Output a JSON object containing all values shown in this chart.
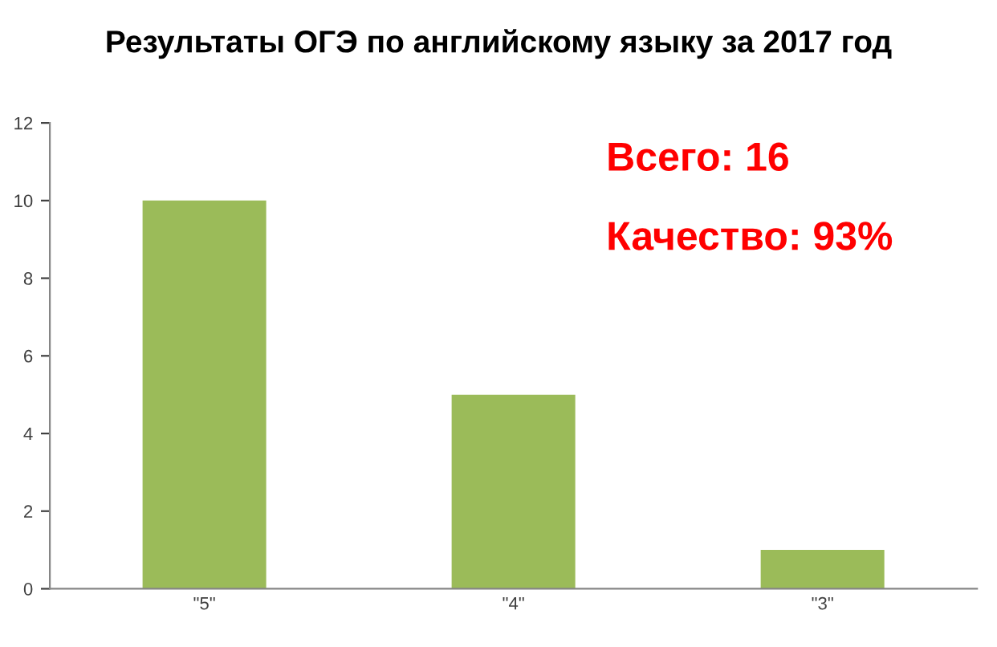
{
  "chart_data": {
    "type": "bar",
    "title": "Результаты ОГЭ по английскому языку за 2017 год",
    "categories": [
      "\"5\"",
      "\"4\"",
      "\"3\""
    ],
    "values": [
      10,
      5,
      1
    ],
    "color": "#9bbb59",
    "ylim": [
      0,
      12
    ],
    "yticks": [
      0,
      2,
      4,
      6,
      8,
      10,
      12
    ],
    "grid": false,
    "legend": false,
    "annotations": [
      "Всего: 16",
      "Качество: 93%"
    ]
  }
}
